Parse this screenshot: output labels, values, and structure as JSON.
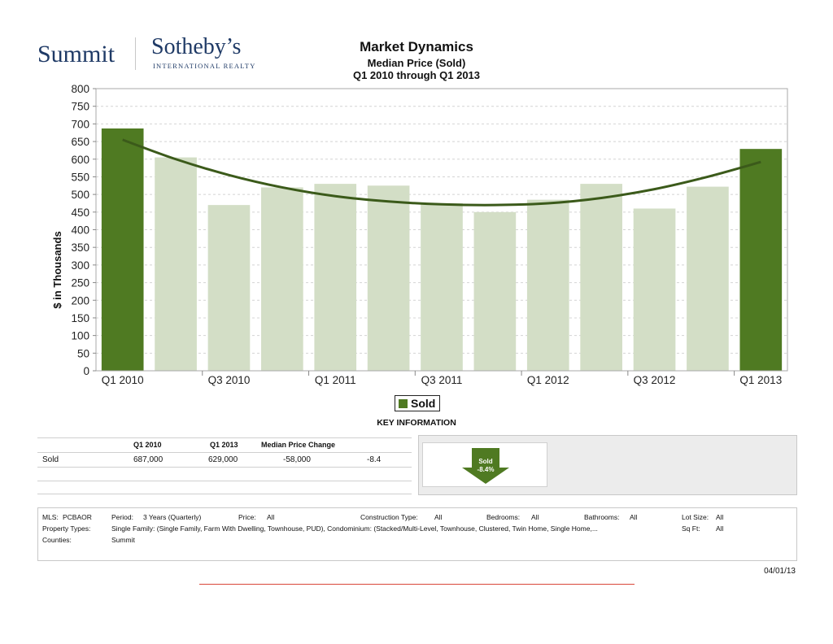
{
  "brand": {
    "summit": "Summit",
    "sothebys": "Sotheby’s",
    "intl": "INTERNATIONAL REALTY"
  },
  "header": {
    "title": "Market Dynamics",
    "subtitle": "Median Price (Sold)",
    "range": "Q1 2010 through Q1 2013"
  },
  "chart_data": {
    "type": "bar",
    "categories": [
      "Q1 2010",
      "Q2 2010",
      "Q3 2010",
      "Q4 2010",
      "Q1 2011",
      "Q2 2011",
      "Q3 2011",
      "Q4 2011",
      "Q1 2012",
      "Q2 2012",
      "Q3 2012",
      "Q4 2012",
      "Q1 2013"
    ],
    "tick_labels": [
      "Q1 2010",
      "Q3 2010",
      "Q1 2011",
      "Q3 2011",
      "Q1 2012",
      "Q3 2012",
      "Q1 2013"
    ],
    "values": [
      687,
      605,
      470,
      520,
      530,
      525,
      475,
      450,
      485,
      530,
      460,
      522,
      629
    ],
    "trend": [
      655,
      600,
      555,
      520,
      495,
      480,
      472,
      470,
      475,
      490,
      515,
      550,
      592
    ],
    "ylabel": "$ in Thousands",
    "ylim": [
      0,
      800
    ],
    "yticks": [
      0,
      50,
      100,
      150,
      200,
      250,
      300,
      350,
      400,
      450,
      500,
      550,
      600,
      650,
      700,
      750,
      800
    ],
    "highlight_indices": [
      0,
      12
    ],
    "colors": {
      "highlight": "#4f7a22",
      "normal": "#d3dec6",
      "trend": "#3b5a1a"
    },
    "legend": {
      "label": "Sold",
      "placement": "bottom-center"
    },
    "grid": true
  },
  "key_info": {
    "title": "KEY INFORMATION",
    "headers": [
      "Q1 2010",
      "Q1 2013",
      "Median Price Change"
    ],
    "row": {
      "label": "Sold",
      "q1_2010": "687,000",
      "q1_2013": "629,000",
      "change": "-58,000",
      "pct": "-8.4"
    }
  },
  "indicator": {
    "label": "Sold",
    "pct": "-8.4%"
  },
  "filters": {
    "mls_label": "MLS:",
    "mls_value": "PCBAOR",
    "period_label": "Period:",
    "period_value": "3 Years (Quarterly)",
    "price_label": "Price:",
    "price_value": "All",
    "construction_label": "Construction Type:",
    "construction_value": "All",
    "bedrooms_label": "Bedrooms:",
    "bedrooms_value": "All",
    "bathrooms_label": "Bathrooms:",
    "bathrooms_value": "All",
    "lotsize_label": "Lot Size:",
    "lotsize_value": "All",
    "ptypes_label": "Property Types:",
    "ptypes_value": "Single Family: (Single Family, Farm With Dwelling, Townhouse, PUD), Condominium: (Stacked/Multi-Level, Townhouse, Clustered, Twin Home, Single Home,...",
    "sqft_label": "Sq Ft:",
    "sqft_value": "All",
    "counties_label": "Counties:",
    "counties_value": "Summit"
  },
  "footer": {
    "date": "04/01/13"
  }
}
